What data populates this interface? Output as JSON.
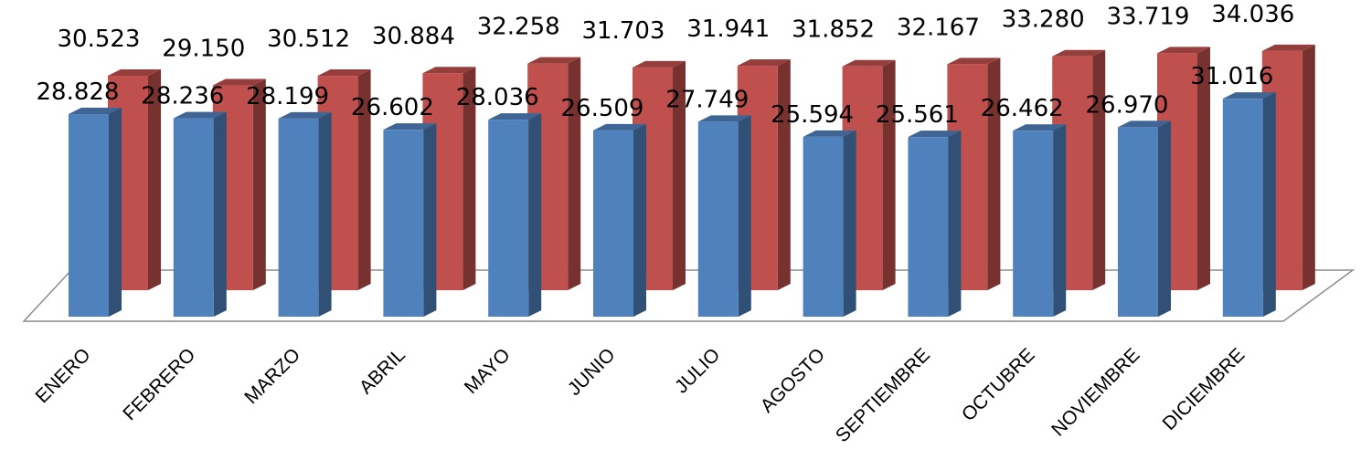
{
  "chart_data": {
    "type": "bar",
    "categories": [
      "ENERO",
      "FEBRERO",
      "MARZO",
      "ABRIL",
      "MAYO",
      "JUNIO",
      "JULIO",
      "AGOSTO",
      "SEPTIEMBRE",
      "OCTUBRE",
      "NOVIEMBRE",
      "DICIEMBRE"
    ],
    "series": [
      {
        "labels": [
          "28.828",
          "28.236",
          "28.199",
          "26.602",
          "28.036",
          "26.509",
          "27.749",
          "25.594",
          "25.561",
          "26.462",
          "26.970",
          "31.016"
        ],
        "values": [
          28828,
          28236,
          28199,
          26602,
          28036,
          26509,
          27749,
          25594,
          25561,
          26462,
          26970,
          31016
        ],
        "color": "#4F81BD"
      },
      {
        "labels": [
          "30.523",
          "29.150",
          "30.512",
          "30.884",
          "32.258",
          "31.703",
          "31.941",
          "31.852",
          "32.167",
          "33.280",
          "33.719",
          "34.036"
        ],
        "values": [
          30523,
          29150,
          30512,
          30884,
          32258,
          31703,
          31941,
          31852,
          32167,
          33280,
          33719,
          34036
        ],
        "color": "#C0504D"
      }
    ],
    "title": "",
    "xlabel": "",
    "ylabel": "",
    "ylim": [
      0,
      35000
    ],
    "style": "3d-clustered-column",
    "grid": false,
    "legend": "none"
  }
}
